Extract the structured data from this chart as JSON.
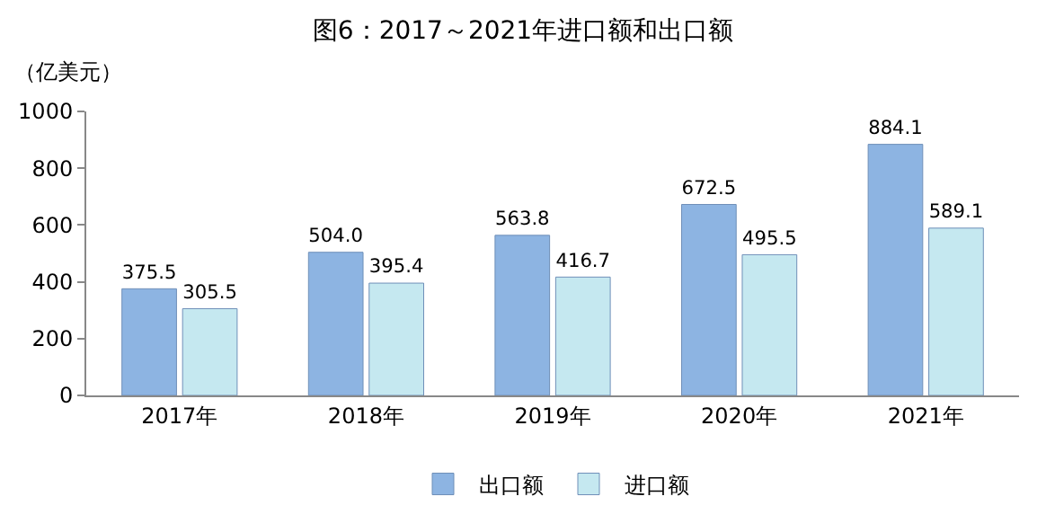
{
  "chart_data": {
    "type": "bar",
    "title": "图6：2017～2021年进口额和出口额",
    "ylabel": "（亿美元）",
    "categories": [
      "2017年",
      "2018年",
      "2019年",
      "2020年",
      "2021年"
    ],
    "series": [
      {
        "name": "出口额",
        "color": "#8db4e2",
        "values": [
          375.5,
          504.0,
          563.8,
          672.5,
          884.1
        ],
        "value_labels": [
          "375.5",
          "504.0",
          "563.8",
          "672.5",
          "884.1"
        ]
      },
      {
        "name": "进口额",
        "color": "#c5e8f0",
        "values": [
          305.5,
          395.4,
          416.7,
          495.5,
          589.1
        ],
        "value_labels": [
          "305.5",
          "395.4",
          "416.7",
          "495.5",
          "589.1"
        ]
      }
    ],
    "ylim": [
      0,
      1000
    ],
    "yticks": [
      0,
      200,
      400,
      600,
      800,
      1000
    ],
    "grid": false,
    "legend": "bottom"
  }
}
